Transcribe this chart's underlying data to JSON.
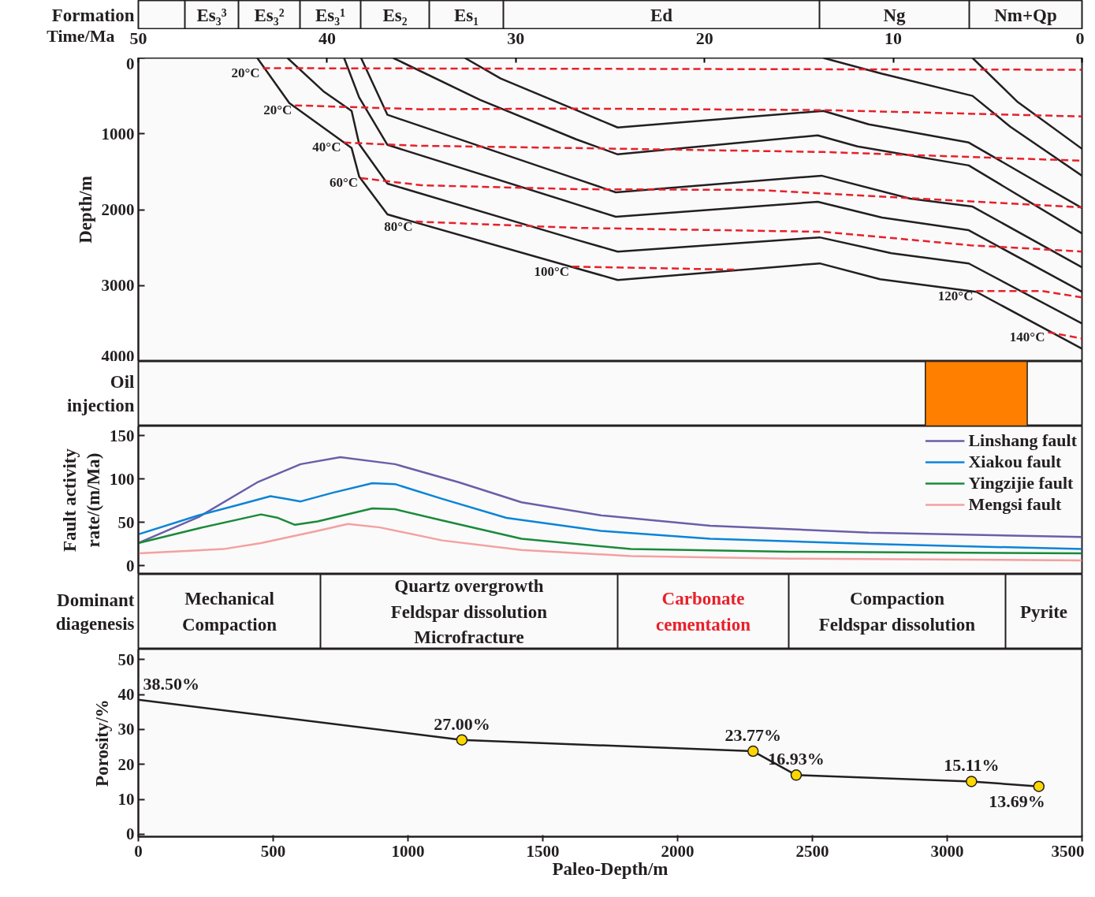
{
  "chart_data": [
    {
      "type": "other",
      "ylabel": "Formation",
      "categories": [
        null,
        "Es₃³",
        "Es₃²",
        "Es₃¹",
        "Es₂",
        "Es₁",
        "Ed",
        "Ng",
        "Nm+Qp"
      ]
    },
    {
      "type": "line",
      "xlabel": "Time/Ma",
      "ylabel": "Depth/m",
      "xlim": [
        50,
        0
      ],
      "xticks": [
        50,
        40,
        30,
        20,
        10,
        0
      ],
      "ylim": [
        4000,
        0
      ],
      "yticks": [
        0,
        1000,
        2000,
        3000,
        4000
      ],
      "grid": false,
      "legend": false,
      "series": [
        {
          "color": "#231f20",
          "x": [
            43.7,
            42.0,
            38.7,
            38.3,
            36.8,
            26.8,
            24.6,
            13.9,
            10.7,
            5.6,
            0
          ],
          "values": [
            0,
            594,
            1188,
            1563,
            2063,
            2771,
            2927,
            2708,
            2917,
            3083,
            3833
          ]
        },
        {
          "color": "#231f20",
          "x": [
            42.1,
            40.2,
            38.7,
            38.3,
            36.8,
            26.8,
            24.6,
            13.9,
            10.1,
            6.0,
            0
          ],
          "values": [
            0,
            438,
            698,
            1136,
            1657,
            2396,
            2553,
            2365,
            2574,
            2709,
            3500
          ]
        },
        {
          "color": "#231f20",
          "x": [
            39.1,
            38.3,
            36.8,
            26.8,
            24.7,
            14.0,
            10.6,
            6.0,
            0
          ],
          "values": [
            0,
            521,
            1146,
            1928,
            2094,
            1896,
            2104,
            2271,
            3083
          ]
        },
        {
          "color": "#231f20",
          "x": [
            38.2,
            36.8,
            26.8,
            24.7,
            13.8,
            9.1,
            5.8,
            0
          ],
          "values": [
            0,
            750,
            1594,
            1771,
            1552,
            1855,
            1959,
            2761
          ]
        },
        {
          "color": "#231f20",
          "x": [
            36.5,
            31.9,
            26.8,
            24.6,
            14.0,
            11.9,
            6.0,
            0
          ],
          "values": [
            0,
            552,
            1073,
            1271,
            1021,
            1167,
            1417,
            2313
          ]
        },
        {
          "color": "#231f20",
          "x": [
            32.7,
            30.8,
            26.8,
            24.6,
            13.7,
            11.3,
            6.0,
            0
          ],
          "values": [
            0,
            271,
            688,
            917,
            698,
            875,
            1115,
            1979
          ]
        },
        {
          "color": "#231f20",
          "x": [
            13.7,
            10.6,
            5.8,
            3.8,
            0
          ],
          "values": [
            0,
            208,
            500,
            906,
            1552
          ]
        },
        {
          "color": "#231f20",
          "x": [
            5.8,
            3.4,
            0
          ],
          "values": [
            0,
            583,
            1198
          ]
        },
        {
          "color": "#e8202a",
          "line_style": "dashed",
          "x": [
            43.4,
            0
          ],
          "values": [
            135,
            156
          ]
        },
        {
          "color": "#e8202a",
          "line_style": "dashed",
          "x": [
            41.7,
            35.0,
            26.8,
            13.7,
            0
          ],
          "values": [
            625,
            677,
            667,
            688,
            771
          ]
        },
        {
          "color": "#e8202a",
          "line_style": "dashed",
          "x": [
            39.1,
            35.3,
            26.8,
            13.7,
            0
          ],
          "values": [
            1115,
            1157,
            1188,
            1240,
            1355
          ]
        },
        {
          "color": "#e8202a",
          "line_style": "dashed",
          "x": [
            38.2,
            35.0,
            26.8,
            17.3,
            10.1,
            0
          ],
          "values": [
            1584,
            1678,
            1730,
            1740,
            1834,
            1969
          ]
        },
        {
          "color": "#e8202a",
          "line_style": "dashed",
          "x": [
            35.3,
            26.8,
            13.7,
            5.9,
            0
          ],
          "values": [
            2157,
            2240,
            2292,
            2469,
            2552
          ]
        },
        {
          "color": "#e8202a",
          "line_style": "dashed",
          "x": [
            27.0,
            18.2
          ],
          "values": [
            2750,
            2792
          ]
        },
        {
          "color": "#e8202a",
          "line_style": "dashed",
          "x": [
            5.6,
            2.1,
            0
          ],
          "values": [
            3073,
            3073,
            3156
          ]
        },
        {
          "color": "#e8202a",
          "line_style": "dashed",
          "x": [
            1.8,
            0
          ],
          "values": [
            3615,
            3698
          ]
        }
      ],
      "annotations": [
        {
          "text": "20°C",
          "x": 43.4,
          "y": 135
        },
        {
          "text": "20°C",
          "x": 41.7,
          "y": 625
        },
        {
          "text": "40°C",
          "x": 39.1,
          "y": 1115
        },
        {
          "text": "60°C",
          "x": 38.2,
          "y": 1584
        },
        {
          "text": "80°C",
          "x": 35.3,
          "y": 2157
        },
        {
          "text": "100°C",
          "x": 27.0,
          "y": 2750
        },
        {
          "text": "120°C",
          "x": 5.6,
          "y": 3073
        },
        {
          "text": "140°C",
          "x": 1.8,
          "y": 3615
        }
      ]
    },
    {
      "type": "bar",
      "orientation": "horizontal",
      "ylabel": "Oil\ninjection",
      "categories": [
        null
      ],
      "base": [
        8.3
      ],
      "values": [
        -5.4
      ],
      "colors": [
        "#ff8000"
      ],
      "xlim": [
        50,
        0
      ],
      "tick_labels": false
    },
    {
      "type": "line",
      "ylabel": "Fault activity\nrate/(m/Ma)",
      "xlim": [
        50,
        0
      ],
      "ylim": [
        -10,
        161
      ],
      "yticks": [
        0,
        50,
        100,
        150
      ],
      "tick_labels": "y",
      "grid": false,
      "legend": "top right",
      "series": [
        {
          "name": "Linshang fault",
          "color": "#6a5fa8",
          "x": [
            50,
            46.8,
            43.7,
            41.4,
            39.3,
            36.4,
            33.0,
            29.7,
            25.5,
            19.7,
            11.3,
            0
          ],
          "values": [
            26,
            56,
            96,
            117,
            125,
            117,
            96,
            73,
            58,
            46,
            38,
            33
          ]
        },
        {
          "name": "Xiakou fault",
          "color": "#0a84d8",
          "x": [
            50,
            46.8,
            44.7,
            43.0,
            42.2,
            41.4,
            39.7,
            37.6,
            36.4,
            33.9,
            30.5,
            25.5,
            19.7,
            11.3,
            0
          ],
          "values": [
            36,
            58,
            70,
            80,
            77,
            74,
            84,
            95,
            94,
            77,
            55,
            40,
            31,
            25,
            19
          ]
        },
        {
          "name": "Yingzijie fault",
          "color": "#1a8a3a",
          "x": [
            50,
            46.8,
            43.5,
            42.6,
            41.7,
            40.5,
            37.6,
            36.4,
            33.9,
            29.7,
            23.9,
            15.5,
            0
          ],
          "values": [
            26,
            43,
            59,
            55,
            47,
            51,
            66,
            65,
            52,
            31,
            19,
            16,
            14
          ]
        },
        {
          "name": "Mengsi fault",
          "color": "#f4a0a0",
          "x": [
            50,
            45.5,
            43.5,
            40.5,
            38.9,
            37.2,
            33.9,
            29.7,
            23.9,
            15.5,
            0
          ],
          "values": [
            14,
            19,
            26,
            40,
            48,
            44,
            29,
            18,
            11,
            8,
            6
          ]
        }
      ]
    },
    {
      "type": "other",
      "ylabel": "Dominant\ndiagenesis",
      "categories": [
        "Mechanical\nCompaction",
        "Quartz overgrowth\nFeldspar dissolution\nMicrofracture",
        "Carbonate\ncementation",
        "Compaction\nFeldspar dissolution",
        "Pyrite"
      ],
      "colors": [
        "#231f20",
        "#231f20",
        "#e8202a",
        "#231f20",
        "#231f20"
      ]
    },
    {
      "type": "line",
      "xlabel": "Paleo-Depth/m",
      "ylabel": "Porosity/%",
      "xlim": [
        0,
        3500
      ],
      "xticks": [
        0,
        500,
        1000,
        1500,
        2000,
        2500,
        3000,
        3500
      ],
      "ylim": [
        -0.7,
        53
      ],
      "yticks": [
        0,
        10,
        20,
        30,
        40,
        50
      ],
      "grid": false,
      "marker": "circle",
      "x": [
        0,
        1200,
        2280,
        2440,
        3090,
        3340
      ],
      "series": [
        {
          "color": "#231f20",
          "values": [
            38.5,
            27.0,
            23.77,
            16.93,
            15.11,
            13.69
          ],
          "value_labels": [
            "38.50%",
            "27.00%",
            "23.77%",
            "16.93%",
            "15.11%",
            "13.69%"
          ]
        }
      ],
      "colors": [
        null,
        "#ffd700",
        "#ffd700",
        "#ffd700",
        "#ffd700",
        "#ffd700"
      ]
    }
  ]
}
